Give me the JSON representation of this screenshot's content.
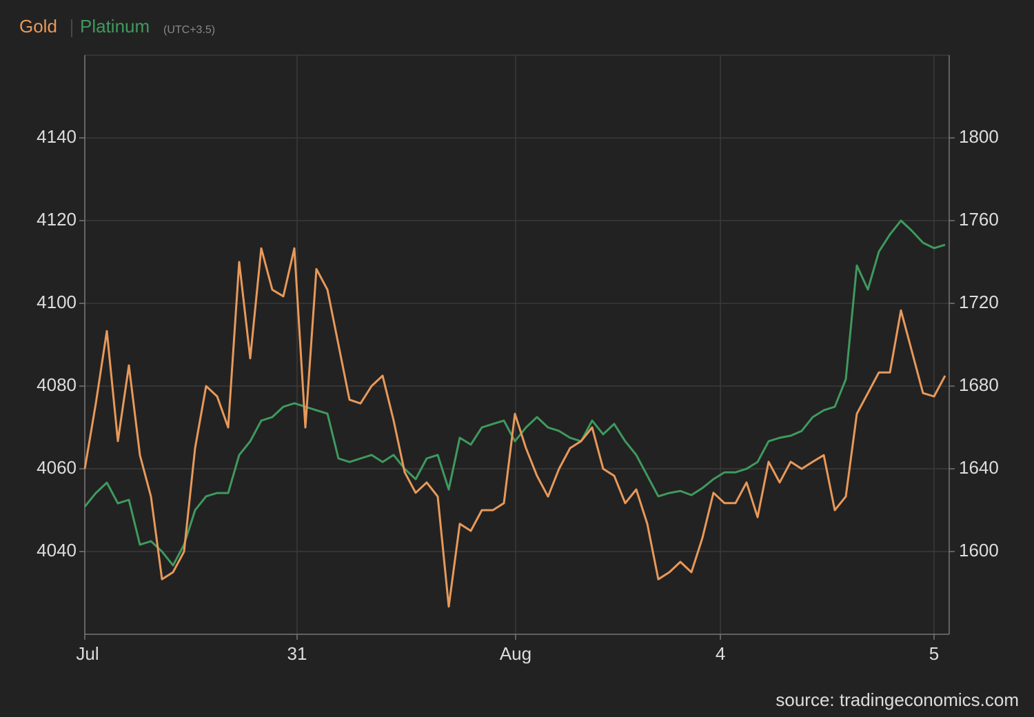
{
  "chart_data": {
    "type": "line",
    "legend": [
      "Gold",
      "Platinum"
    ],
    "timezone": "(UTC+3.5)",
    "source": "source: tradingeconomics.com",
    "x": [
      0,
      1,
      2,
      3,
      4,
      5,
      6,
      7,
      8,
      9,
      10,
      11,
      12,
      13,
      14,
      15,
      16,
      17,
      18,
      19,
      20,
      21,
      22,
      23,
      24,
      25,
      26,
      27,
      28,
      29,
      30,
      31,
      32,
      33,
      34,
      35,
      36,
      37,
      38,
      39,
      40,
      41,
      42,
      43,
      44,
      45,
      46,
      47,
      48,
      49,
      50,
      51,
      52,
      53,
      54,
      55,
      56,
      57,
      58,
      59,
      60,
      61,
      62,
      63,
      64,
      65,
      66,
      67,
      68,
      69,
      70,
      71,
      72,
      73,
      74,
      75,
      76,
      77,
      78
    ],
    "xlim": [
      0,
      78.375
    ],
    "xticks": [
      {
        "value": 0,
        "label": "Jul"
      },
      {
        "value": 19.25,
        "label": "31"
      },
      {
        "value": 39.06,
        "label": "Aug"
      },
      {
        "value": 57.63,
        "label": "4"
      },
      {
        "value": 77,
        "label": "5"
      }
    ],
    "ylim": [
      4020,
      4160
    ],
    "yticks": [
      4040,
      4060,
      4080,
      4100,
      4120,
      4140
    ],
    "y2lim": [
      1560,
      1840
    ],
    "y2ticks": [
      1600,
      1640,
      1680,
      1720,
      1760,
      1800
    ],
    "grid": true,
    "series": [
      {
        "name": "Gold",
        "color": "#e8995a",
        "values": [
          4060,
          4075.8,
          4093.3,
          4066.7,
          4085,
          4063.3,
          4053.3,
          4033.3,
          4035,
          4040,
          4065,
          4080,
          4077.5,
          4070,
          4110,
          4086.7,
          4113.3,
          4103.3,
          4101.7,
          4113.3,
          4070,
          4108.3,
          4103.3,
          4090,
          4076.7,
          4075.8,
          4080,
          4082.5,
          4071.7,
          4059.2,
          4054.2,
          4056.7,
          4053.3,
          4026.7,
          4046.7,
          4045,
          4050,
          4050,
          4051.7,
          4073.3,
          4065,
          4058.3,
          4053.3,
          4060,
          4065,
          4066.7,
          4070,
          4060,
          4058.3,
          4051.7,
          4055,
          4046.7,
          4033.3,
          4035,
          4037.5,
          4035,
          4043.3,
          4054.2,
          4051.7,
          4051.7,
          4056.7,
          4048.3,
          4061.7,
          4056.7,
          4061.7,
          4060,
          4061.7,
          4063.3,
          4050,
          4053.3,
          4073.3,
          4078.3,
          4083.3,
          4083.3,
          4098.3,
          4088.3,
          4078.3,
          4077.5,
          4082.5
        ]
      },
      {
        "name": "Platinum",
        "color": "#3f9a5e",
        "axis": "y2",
        "values": [
          1621.7,
          1628.3,
          1633.3,
          1623.3,
          1625,
          1603.3,
          1605,
          1600,
          1593.3,
          1603.3,
          1620,
          1626.7,
          1628.3,
          1628.3,
          1646.7,
          1653.3,
          1663.3,
          1665,
          1670,
          1671.7,
          1670,
          1668.3,
          1666.7,
          1645,
          1643.3,
          1645,
          1646.7,
          1643.3,
          1646.7,
          1640,
          1635,
          1645,
          1646.7,
          1630,
          1655,
          1651.7,
          1660,
          1661.7,
          1663.3,
          1653.3,
          1660,
          1665,
          1660,
          1658.3,
          1655,
          1653.3,
          1663.3,
          1656.7,
          1661.7,
          1653.3,
          1646.7,
          1636.7,
          1626.7,
          1628.3,
          1629.3,
          1627.3,
          1630.7,
          1635,
          1638.3,
          1638.3,
          1640,
          1643.3,
          1653.3,
          1655,
          1656,
          1658.3,
          1665,
          1668.3,
          1670,
          1683.3,
          1738.3,
          1726.7,
          1745,
          1753.3,
          1760,
          1755,
          1749.3,
          1746.7,
          1748.3
        ]
      }
    ]
  }
}
